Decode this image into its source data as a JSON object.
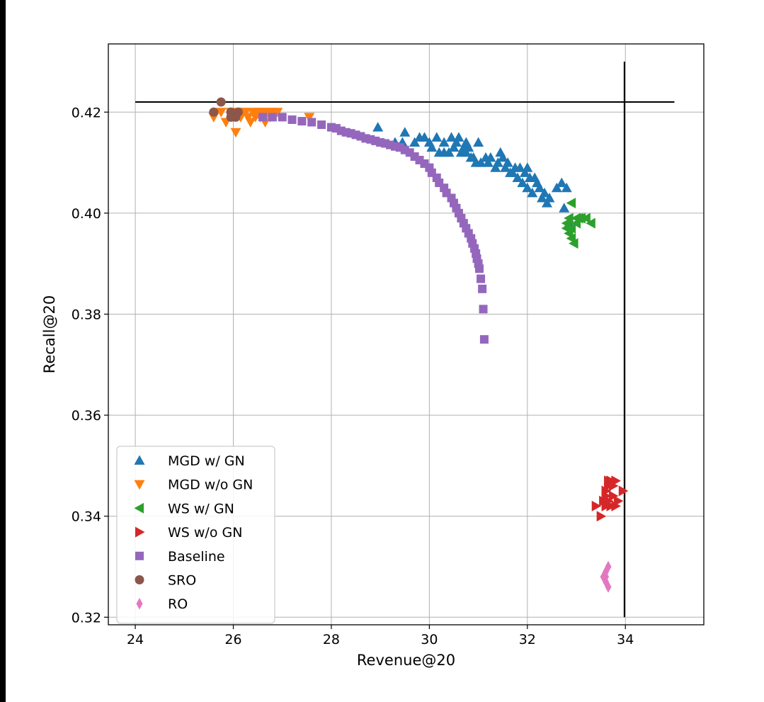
{
  "chart_data": {
    "type": "scatter",
    "title": "",
    "xlabel": "Revenue@20",
    "ylabel": "Recall@20",
    "xlim": [
      23.45,
      35.6
    ],
    "ylim": [
      0.3185,
      0.4335
    ],
    "xticks": [
      24,
      26,
      28,
      30,
      32,
      34
    ],
    "yticks": [
      0.32,
      0.34,
      0.36,
      0.38,
      0.4,
      0.42
    ],
    "xtick_labels": [
      "24",
      "26",
      "28",
      "30",
      "32",
      "34"
    ],
    "ytick_labels": [
      "0.32",
      "0.34",
      "0.36",
      "0.38",
      "0.40",
      "0.42"
    ],
    "grid": true,
    "legend_position": "lower-left",
    "reference_lines": [
      {
        "orientation": "horizontal",
        "y": 0.422,
        "x_from": 24,
        "x_to": 35
      },
      {
        "orientation": "vertical",
        "x": 33.98,
        "y_from": 0.32,
        "y_to": 0.43
      }
    ],
    "series": [
      {
        "name": "MGD w/ GN",
        "marker": "triangle-up",
        "color": "#1f77b4",
        "points": [
          [
            28.95,
            0.417
          ],
          [
            29.3,
            0.414
          ],
          [
            29.45,
            0.414
          ],
          [
            29.5,
            0.416
          ],
          [
            29.8,
            0.415
          ],
          [
            29.9,
            0.415
          ],
          [
            30.0,
            0.414
          ],
          [
            30.05,
            0.413
          ],
          [
            30.15,
            0.415
          ],
          [
            30.2,
            0.412
          ],
          [
            30.3,
            0.412
          ],
          [
            30.4,
            0.412
          ],
          [
            30.45,
            0.415
          ],
          [
            30.5,
            0.413
          ],
          [
            30.55,
            0.414
          ],
          [
            30.6,
            0.415
          ],
          [
            30.65,
            0.412
          ],
          [
            30.7,
            0.413
          ],
          [
            30.75,
            0.412
          ],
          [
            30.8,
            0.413
          ],
          [
            30.9,
            0.411
          ],
          [
            30.95,
            0.41
          ],
          [
            31.0,
            0.414
          ],
          [
            31.15,
            0.411
          ],
          [
            31.2,
            0.41
          ],
          [
            31.25,
            0.411
          ],
          [
            31.35,
            0.409
          ],
          [
            31.4,
            0.41
          ],
          [
            31.45,
            0.412
          ],
          [
            31.5,
            0.411
          ],
          [
            31.55,
            0.409
          ],
          [
            31.6,
            0.41
          ],
          [
            31.7,
            0.408
          ],
          [
            31.75,
            0.409
          ],
          [
            31.8,
            0.407
          ],
          [
            31.9,
            0.406
          ],
          [
            31.95,
            0.408
          ],
          [
            32.0,
            0.405
          ],
          [
            32.05,
            0.407
          ],
          [
            32.1,
            0.404
          ],
          [
            32.2,
            0.406
          ],
          [
            32.25,
            0.405
          ],
          [
            32.3,
            0.403
          ],
          [
            32.35,
            0.404
          ],
          [
            32.4,
            0.402
          ],
          [
            32.6,
            0.405
          ],
          [
            32.7,
            0.406
          ],
          [
            32.75,
            0.401
          ],
          [
            32.8,
            0.405
          ],
          [
            32.85,
            0.398
          ],
          [
            31.85,
            0.409
          ],
          [
            31.65,
            0.408
          ],
          [
            30.85,
            0.411
          ],
          [
            30.3,
            0.414
          ],
          [
            29.7,
            0.414
          ],
          [
            32.15,
            0.407
          ],
          [
            31.05,
            0.41
          ],
          [
            30.75,
            0.414
          ],
          [
            32.45,
            0.403
          ],
          [
            32.0,
            0.409
          ]
        ]
      },
      {
        "name": "MGD w/o GN",
        "marker": "triangle-down",
        "color": "#ff7f0e",
        "points": [
          [
            25.6,
            0.419
          ],
          [
            25.75,
            0.42
          ],
          [
            25.85,
            0.418
          ],
          [
            25.95,
            0.42
          ],
          [
            26.05,
            0.416
          ],
          [
            26.1,
            0.42
          ],
          [
            26.15,
            0.419
          ],
          [
            26.2,
            0.42
          ],
          [
            26.3,
            0.419
          ],
          [
            26.35,
            0.418
          ],
          [
            26.4,
            0.42
          ],
          [
            26.45,
            0.419
          ],
          [
            26.5,
            0.42
          ],
          [
            26.55,
            0.419
          ],
          [
            26.6,
            0.42
          ],
          [
            26.65,
            0.418
          ],
          [
            26.7,
            0.42
          ],
          [
            26.75,
            0.419
          ],
          [
            26.8,
            0.42
          ],
          [
            26.9,
            0.42
          ],
          [
            27.55,
            0.419
          ],
          [
            26.25,
            0.42
          ],
          [
            26.0,
            0.419
          ]
        ]
      },
      {
        "name": "WS w/ GN",
        "marker": "triangle-left",
        "color": "#2ca02c",
        "points": [
          [
            32.8,
            0.398
          ],
          [
            32.85,
            0.396
          ],
          [
            32.9,
            0.397
          ],
          [
            32.95,
            0.394
          ],
          [
            32.9,
            0.402
          ],
          [
            33.0,
            0.399
          ],
          [
            33.1,
            0.399
          ],
          [
            33.2,
            0.399
          ],
          [
            33.3,
            0.398
          ],
          [
            32.85,
            0.399
          ],
          [
            32.9,
            0.395
          ],
          [
            33.0,
            0.398
          ],
          [
            33.05,
            0.399
          ],
          [
            32.8,
            0.397
          ]
        ]
      },
      {
        "name": "WS w/o GN",
        "marker": "triangle-right",
        "color": "#d62728",
        "points": [
          [
            33.4,
            0.342
          ],
          [
            33.5,
            0.34
          ],
          [
            33.55,
            0.343
          ],
          [
            33.6,
            0.344
          ],
          [
            33.6,
            0.345
          ],
          [
            33.65,
            0.346
          ],
          [
            33.65,
            0.343
          ],
          [
            33.7,
            0.342
          ],
          [
            33.7,
            0.347
          ],
          [
            33.75,
            0.344
          ],
          [
            33.8,
            0.342
          ],
          [
            33.85,
            0.343
          ],
          [
            33.95,
            0.345
          ],
          [
            33.8,
            0.347
          ],
          [
            33.65,
            0.347
          ],
          [
            33.75,
            0.346
          ],
          [
            33.6,
            0.342
          ]
        ]
      },
      {
        "name": "Baseline",
        "marker": "square",
        "color": "#9467bd",
        "points": [
          [
            26.6,
            0.419
          ],
          [
            26.8,
            0.419
          ],
          [
            27.0,
            0.419
          ],
          [
            27.2,
            0.4185
          ],
          [
            27.4,
            0.4182
          ],
          [
            27.6,
            0.418
          ],
          [
            27.8,
            0.4175
          ],
          [
            28.0,
            0.417
          ],
          [
            28.2,
            0.4163
          ],
          [
            28.4,
            0.4158
          ],
          [
            28.6,
            0.4152
          ],
          [
            28.8,
            0.4146
          ],
          [
            29.0,
            0.414
          ],
          [
            29.2,
            0.4135
          ],
          [
            29.4,
            0.413
          ],
          [
            29.6,
            0.412
          ],
          [
            29.8,
            0.4105
          ],
          [
            30.0,
            0.409
          ],
          [
            30.15,
            0.407
          ],
          [
            30.3,
            0.405
          ],
          [
            30.45,
            0.403
          ],
          [
            30.55,
            0.401
          ],
          [
            30.65,
            0.399
          ],
          [
            30.75,
            0.397
          ],
          [
            30.85,
            0.395
          ],
          [
            30.92,
            0.393
          ],
          [
            30.97,
            0.391
          ],
          [
            31.02,
            0.389
          ],
          [
            31.05,
            0.387
          ],
          [
            31.08,
            0.385
          ],
          [
            31.1,
            0.381
          ],
          [
            31.12,
            0.375
          ],
          [
            28.1,
            0.4168
          ],
          [
            28.3,
            0.416
          ],
          [
            28.5,
            0.4155
          ],
          [
            28.7,
            0.4148
          ],
          [
            28.9,
            0.4143
          ],
          [
            29.1,
            0.4138
          ],
          [
            29.3,
            0.4132
          ],
          [
            29.5,
            0.4125
          ],
          [
            29.7,
            0.4112
          ],
          [
            29.9,
            0.4098
          ],
          [
            30.05,
            0.408
          ],
          [
            30.2,
            0.406
          ],
          [
            30.35,
            0.404
          ],
          [
            30.5,
            0.402
          ],
          [
            30.6,
            0.4
          ],
          [
            30.7,
            0.398
          ],
          [
            30.8,
            0.396
          ],
          [
            30.88,
            0.394
          ],
          [
            30.95,
            0.392
          ],
          [
            31.0,
            0.39
          ]
        ]
      },
      {
        "name": "SRO",
        "marker": "circle",
        "color": "#8c564b",
        "points": [
          [
            25.6,
            0.42
          ],
          [
            25.75,
            0.422
          ],
          [
            25.95,
            0.42
          ],
          [
            25.95,
            0.419
          ],
          [
            26.1,
            0.42
          ],
          [
            26.05,
            0.419
          ]
        ]
      },
      {
        "name": "RO",
        "marker": "diamond",
        "color": "#e377c2",
        "points": [
          [
            33.55,
            0.328
          ],
          [
            33.6,
            0.327
          ],
          [
            33.65,
            0.326
          ],
          [
            33.65,
            0.33
          ],
          [
            33.6,
            0.329
          ],
          [
            33.6,
            0.328
          ]
        ]
      }
    ]
  }
}
